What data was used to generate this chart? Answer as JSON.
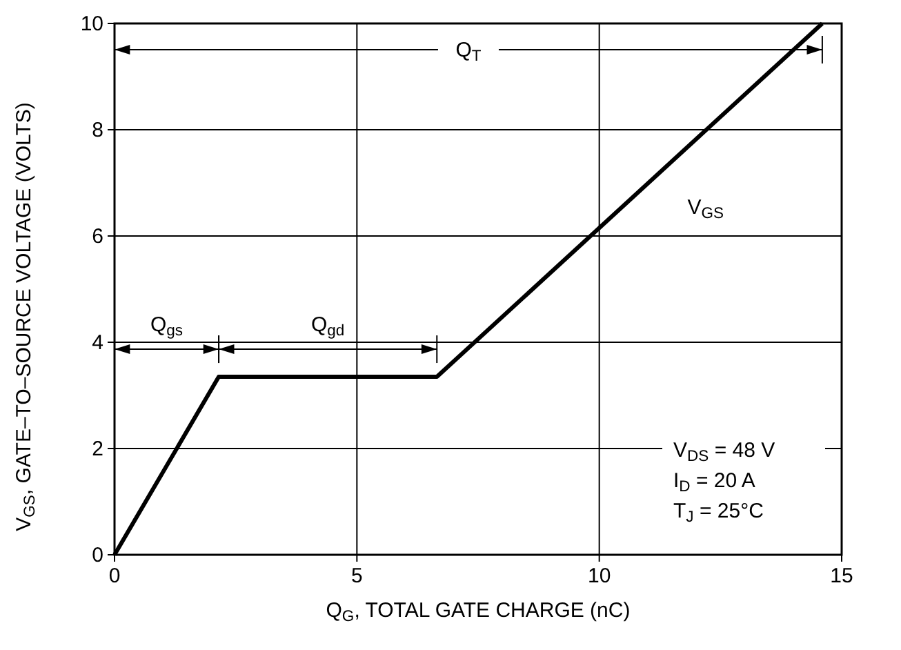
{
  "chart_data": {
    "type": "line",
    "xlabel": "Q$_{G}$, TOTAL GATE CHARGE (nC)",
    "ylabel": "V$_{GS}$, GATE–TO–SOURCE VOLTAGE (VOLTS)",
    "x": [
      0,
      2.15,
      6.65,
      14.6
    ],
    "series": [
      {
        "name": "V$_{GS}$",
        "color": "#000000",
        "values": [
          0,
          3.35,
          3.35,
          10
        ]
      }
    ],
    "xlim": [
      0,
      15
    ],
    "ylim": [
      0,
      10
    ],
    "xticks": [
      0,
      5,
      10,
      15
    ],
    "yticks": [
      0,
      2,
      4,
      6,
      8,
      10
    ],
    "grid": true,
    "marker": "none",
    "line_style": "solid",
    "annotations": [
      "Q$_{T}$",
      "Q$_{gs}$",
      "Q$_{gd}$",
      "V$_{DS}$ = 48 V",
      "I$_{D}$ = 20 A",
      "T$_{J}$ = 25°C"
    ]
  }
}
